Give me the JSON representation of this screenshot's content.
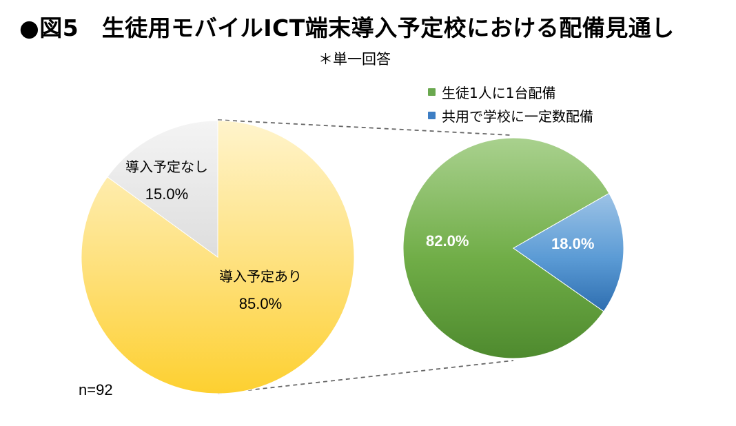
{
  "title": "●図5　生徒用モバイルICT端末導入予定校における配備見通し",
  "subtitle": "＊単一回答",
  "n_label": "n=92",
  "chart_data": [
    {
      "type": "pie",
      "slices": [
        {
          "name": "導入予定あり",
          "value": 85.0,
          "label": "85.0%",
          "color": "#fdd332"
        },
        {
          "name": "導入予定なし",
          "value": 15.0,
          "label": "15.0%",
          "color": "#e6e6e6"
        }
      ]
    },
    {
      "type": "pie",
      "legend": [
        "生徒1人に1台配備",
        "共用で学校に一定数配備"
      ],
      "slices": [
        {
          "name": "生徒1人に1台配備",
          "value": 82.0,
          "label": "82.0%",
          "color": "#6aa84f"
        },
        {
          "name": "共用で学校に一定数配備",
          "value": 18.0,
          "label": "18.0%",
          "color": "#3d7ec4"
        }
      ]
    }
  ]
}
